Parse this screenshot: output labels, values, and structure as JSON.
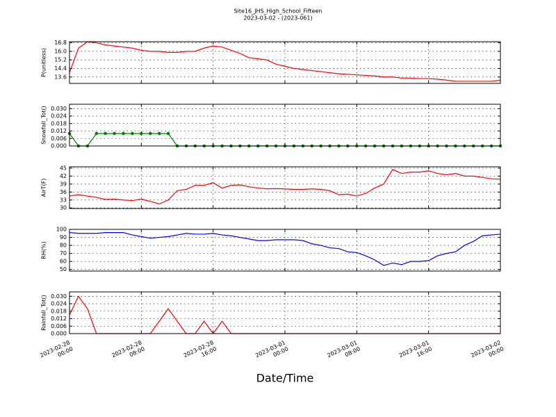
{
  "chart_data": {
    "type": "line",
    "title": "Site16_JHS_High_School_Fifteen",
    "subtitle": "2023-03-02 - (2023-061)",
    "xlabel": "Date/Time",
    "grid": true,
    "xlim": [
      "2023-02-28 00:00",
      "2023-03-02 00:00"
    ],
    "xticks": [
      "2023-02-28 00:00",
      "2023-02-28 08:00",
      "2023-02-28 16:00",
      "2023-03-01 00:00",
      "2023-03-01 08:00",
      "2023-03-01 16:00",
      "2023-03-02 00:00"
    ],
    "x": [
      "2023-02-28 00:00",
      "2023-02-28 01:00",
      "2023-02-28 02:00",
      "2023-02-28 03:00",
      "2023-02-28 04:00",
      "2023-02-28 05:00",
      "2023-02-28 06:00",
      "2023-02-28 07:00",
      "2023-02-28 08:00",
      "2023-02-28 09:00",
      "2023-02-28 10:00",
      "2023-02-28 11:00",
      "2023-02-28 12:00",
      "2023-02-28 13:00",
      "2023-02-28 14:00",
      "2023-02-28 15:00",
      "2023-02-28 16:00",
      "2023-02-28 17:00",
      "2023-02-28 18:00",
      "2023-02-28 19:00",
      "2023-02-28 20:00",
      "2023-02-28 21:00",
      "2023-02-28 22:00",
      "2023-02-28 23:00",
      "2023-03-01 00:00",
      "2023-03-01 01:00",
      "2023-03-01 02:00",
      "2023-03-01 03:00",
      "2023-03-01 04:00",
      "2023-03-01 05:00",
      "2023-03-01 06:00",
      "2023-03-01 07:00",
      "2023-03-01 08:00",
      "2023-03-01 09:00",
      "2023-03-01 10:00",
      "2023-03-01 11:00",
      "2023-03-01 12:00",
      "2023-03-01 13:00",
      "2023-03-01 14:00",
      "2023-03-01 15:00",
      "2023-03-01 16:00",
      "2023-03-01 17:00",
      "2023-03-01 18:00",
      "2023-03-01 19:00",
      "2023-03-01 20:00",
      "2023-03-01 21:00",
      "2023-03-01 22:00",
      "2023-03-01 23:00",
      "2023-03-02 00:00"
    ],
    "panels": [
      {
        "ylabel": "P(unitless)",
        "ylim": [
          13.0,
          16.9
        ],
        "yticks": [
          13.6,
          14.4,
          15.2,
          {
            "value": 16.0,
            "label": "16.0"
          },
          16.8
        ],
        "series": [
          {
            "color": "#ff0000",
            "values": [
              14.0,
              16.3,
              16.9,
              16.8,
              16.6,
              16.5,
              16.4,
              16.3,
              16.1,
              16.0,
              16.0,
              15.9,
              15.9,
              16.0,
              16.0,
              16.3,
              16.5,
              16.4,
              16.1,
              15.8,
              15.4,
              15.3,
              15.2,
              14.8,
              14.6,
              14.4,
              14.3,
              14.2,
              14.1,
              14.0,
              13.9,
              13.85,
              13.8,
              13.75,
              13.7,
              13.6,
              13.6,
              13.5,
              13.5,
              13.45,
              13.45,
              13.4,
              13.3,
              13.2,
              13.2,
              13.2,
              13.2,
              13.2,
              13.3
            ]
          }
        ]
      },
      {
        "ylabel": "Snowfall_Tot()",
        "ylim": [
          0,
          0.0335
        ],
        "yticks": [
          {
            "value": 0,
            "label": "0.000"
          },
          0.006,
          0.012,
          0.018,
          0.024,
          {
            "value": 0.03,
            "label": "0.030"
          }
        ],
        "series": [
          {
            "color": "#008000",
            "marker": "o",
            "values": [
              0.01,
              0,
              0,
              0.01,
              0.01,
              0.01,
              0.01,
              0.01,
              0.01,
              0.01,
              0.01,
              0.01,
              0,
              0,
              0,
              0,
              0,
              0,
              0,
              0,
              0,
              0,
              0,
              0,
              0,
              0,
              0,
              0,
              0,
              0,
              0,
              0,
              0,
              0,
              0,
              0,
              0,
              0,
              0,
              0,
              0,
              0,
              0,
              0,
              0,
              0,
              0,
              0,
              0
            ]
          }
        ]
      },
      {
        "ylabel": "AirT(F)",
        "ylim": [
          29.8,
          45.5
        ],
        "yticks": [
          30,
          33,
          36,
          39,
          42,
          45
        ],
        "series": [
          {
            "color": "#ff0000",
            "values": [
              34.5,
              35,
              34.5,
              34,
              33.2,
              33.3,
              33,
              32.8,
              33.3,
              32.5,
              31.5,
              33,
              36.5,
              37,
              38.5,
              38.5,
              39.5,
              37.5,
              38.5,
              38.7,
              38,
              37.5,
              37.2,
              37.3,
              37.2,
              37,
              37,
              37.2,
              37,
              36.5,
              35,
              35.2,
              34.5,
              35.5,
              37.5,
              39,
              44.5,
              43,
              43.5,
              43.5,
              44,
              43,
              42.5,
              43,
              42,
              42,
              41.5,
              41,
              40.8
            ]
          }
        ]
      },
      {
        "ylabel": "RH(%)",
        "ylim": [
          48,
          100
        ],
        "yticks": [
          50,
          60,
          70,
          80,
          90,
          100
        ],
        "series": [
          {
            "color": "#0000ff",
            "values": [
              96,
              95,
              95,
              95,
              96,
              96,
              96,
              93,
              91,
              89,
              90,
              91,
              93,
              95,
              94,
              94,
              95,
              93,
              92,
              90,
              88,
              86,
              86,
              87,
              87,
              87,
              86,
              82,
              80,
              77,
              76,
              72,
              71,
              67,
              62,
              55,
              58,
              56,
              60,
              60,
              61,
              67,
              70,
              72,
              80,
              85,
              92,
              93,
              94
            ]
          }
        ]
      },
      {
        "ylabel": "Rainfall_Tot()",
        "ylim": [
          0,
          0.0335
        ],
        "yticks": [
          {
            "value": 0,
            "label": "0.000"
          },
          0.006,
          0.012,
          0.018,
          0.024,
          {
            "value": 0.03,
            "label": "0.030"
          }
        ],
        "series": [
          {
            "color": "#ff0000",
            "values": [
              0.015,
              0.03,
              0.02,
              0,
              0,
              0,
              0,
              0,
              0,
              0,
              0.01,
              0.02,
              0.01,
              0,
              0,
              0.01,
              0,
              0.01,
              0,
              0,
              0,
              0,
              0,
              0,
              0,
              0,
              0,
              0,
              0,
              0,
              0,
              0,
              0,
              0,
              0,
              0,
              0,
              0,
              0,
              0,
              0,
              0,
              0,
              0,
              0,
              0,
              0,
              0,
              0
            ]
          }
        ]
      }
    ]
  }
}
